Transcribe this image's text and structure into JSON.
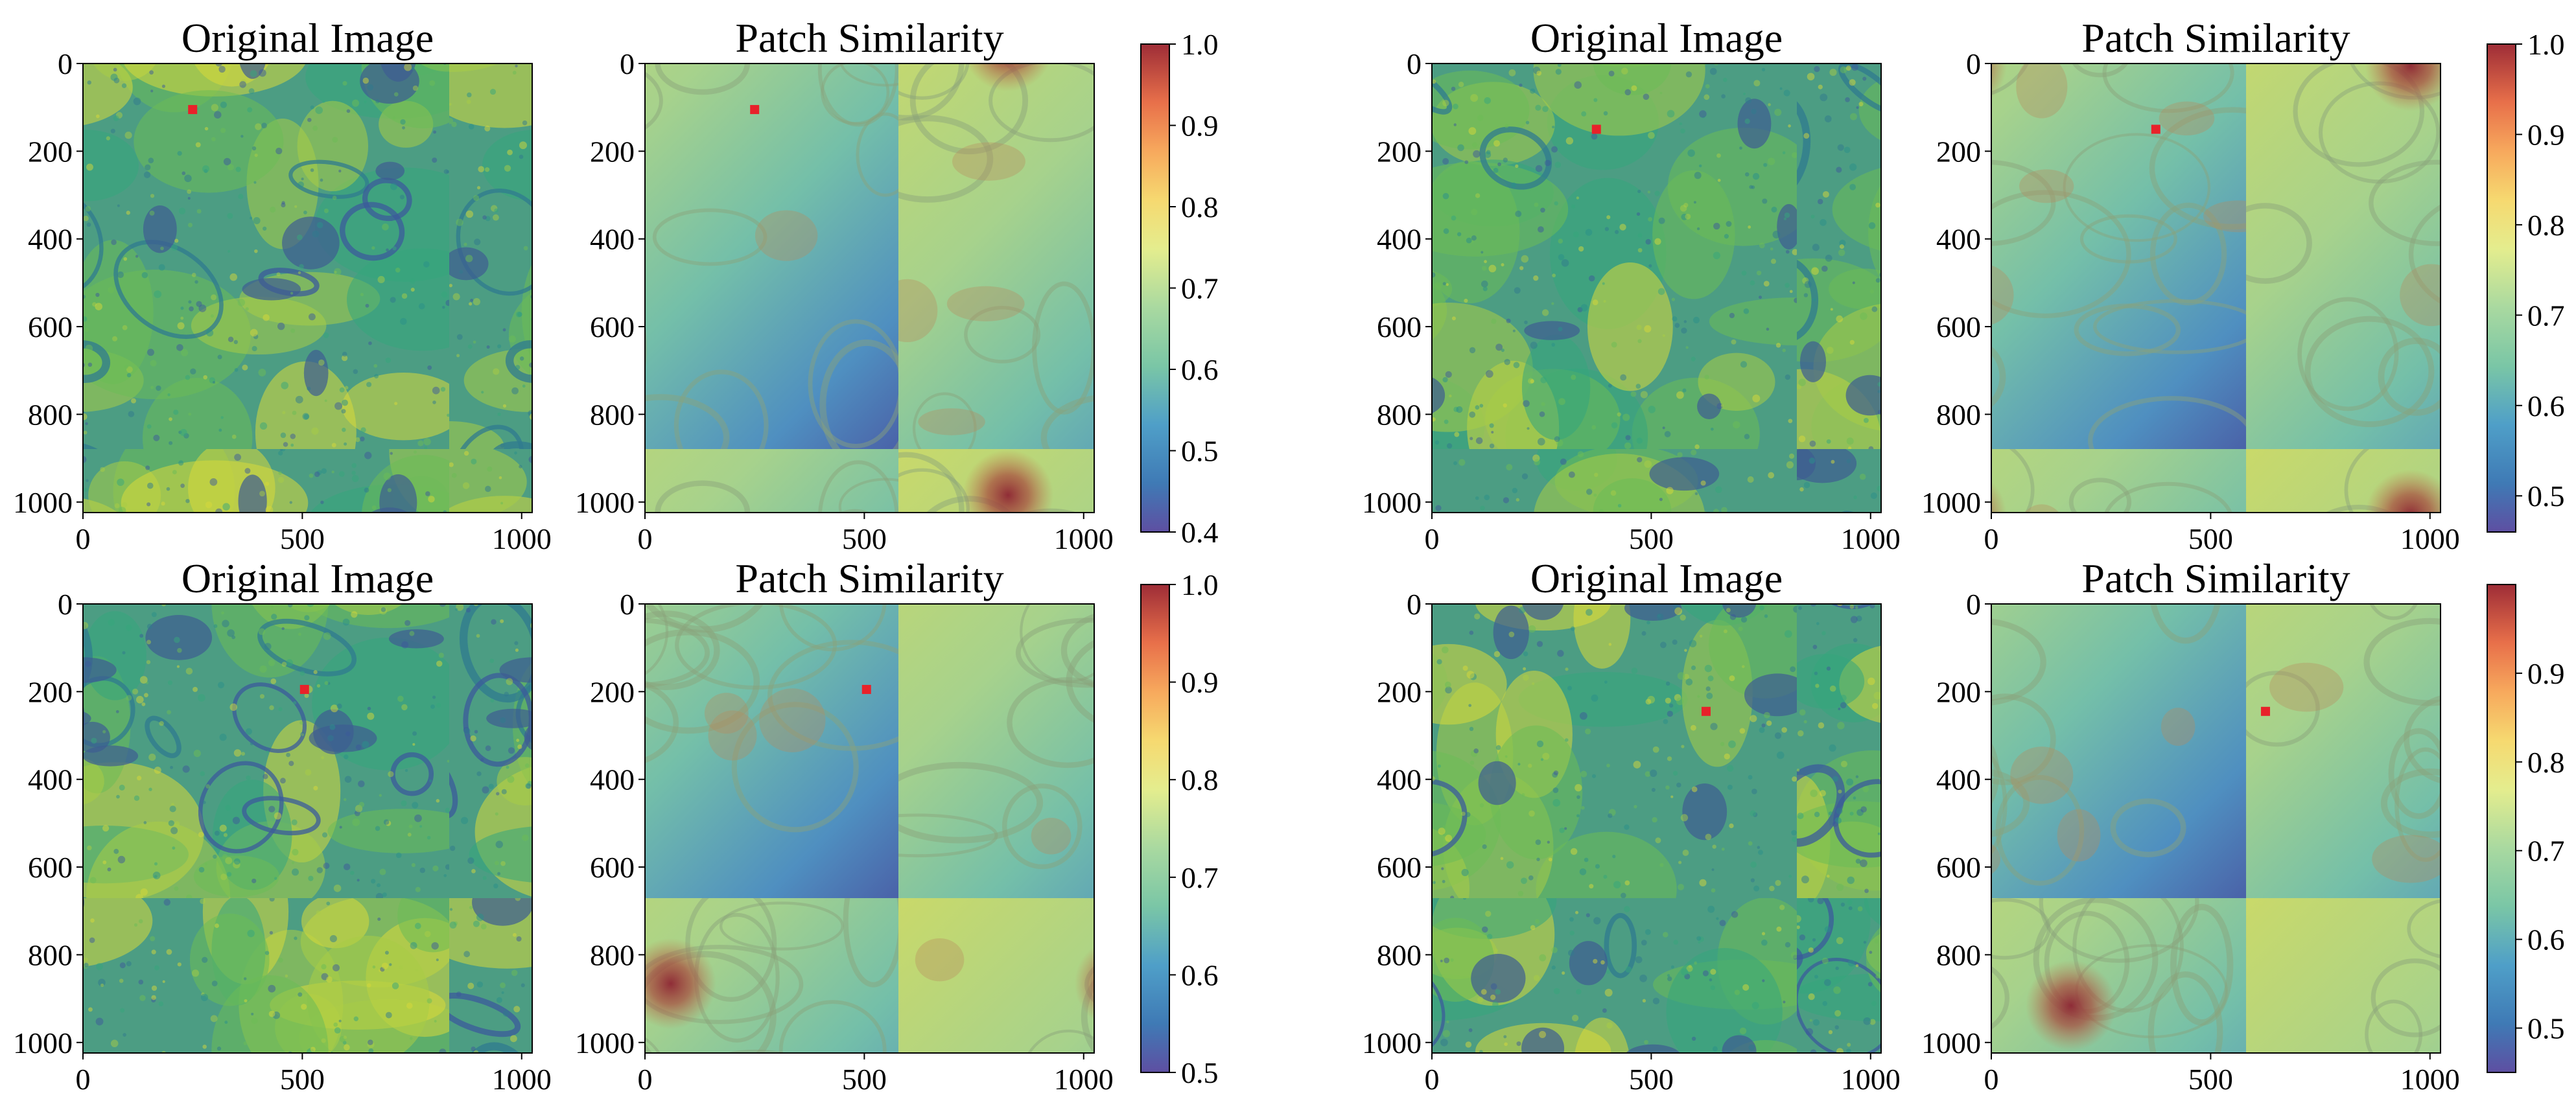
{
  "chart_data": [
    {
      "type": "heatmap",
      "variant": "original",
      "title": "Original Image",
      "xlim": [
        0,
        1024
      ],
      "ylim": [
        1024,
        0
      ],
      "x_ticks": [
        0,
        500,
        1000
      ],
      "y_ticks": [
        0,
        200,
        400,
        600,
        800,
        1000
      ],
      "query_point": {
        "x": 250,
        "y": 105
      },
      "marker_color": "#e8222a",
      "colormap": "viridis"
    },
    {
      "type": "heatmap",
      "variant": "similarity",
      "title": "Patch Similarity",
      "xlim": [
        0,
        1024
      ],
      "ylim": [
        1024,
        0
      ],
      "x_ticks": [
        0,
        500,
        1000
      ],
      "y_ticks": [
        0,
        200,
        400,
        600,
        800,
        1000
      ],
      "query_point": {
        "x": 250,
        "y": 105
      },
      "marker_color": "#e8222a",
      "colormap": "Spectral_r",
      "colorbar": {
        "min": 0.4,
        "max": 1.0,
        "ticks": [
          "0.4",
          "0.5",
          "0.6",
          "0.7",
          "0.8",
          "0.9",
          "1.0"
        ]
      }
    },
    {
      "type": "heatmap",
      "variant": "original",
      "title": "Original Image",
      "xlim": [
        0,
        1024
      ],
      "ylim": [
        1024,
        0
      ],
      "x_ticks": [
        0,
        500,
        1000
      ],
      "y_ticks": [
        0,
        200,
        400,
        600,
        800,
        1000
      ],
      "query_point": {
        "x": 375,
        "y": 150
      },
      "marker_color": "#e8222a",
      "colormap": "viridis"
    },
    {
      "type": "heatmap",
      "variant": "similarity",
      "title": "Patch Similarity",
      "xlim": [
        0,
        1024
      ],
      "ylim": [
        1024,
        0
      ],
      "x_ticks": [
        0,
        500,
        1000
      ],
      "y_ticks": [
        0,
        200,
        400,
        600,
        800,
        1000
      ],
      "query_point": {
        "x": 375,
        "y": 150
      },
      "marker_color": "#e8222a",
      "colormap": "Spectral_r",
      "colorbar": {
        "min": 0.46,
        "max": 1.0,
        "ticks": [
          "0.5",
          "0.6",
          "0.7",
          "0.8",
          "0.9",
          "1.0"
        ]
      }
    },
    {
      "type": "heatmap",
      "variant": "original",
      "title": "Original Image",
      "xlim": [
        0,
        1024
      ],
      "ylim": [
        1024,
        0
      ],
      "x_ticks": [
        0,
        500,
        1000
      ],
      "y_ticks": [
        0,
        200,
        400,
        600,
        800,
        1000
      ],
      "query_point": {
        "x": 505,
        "y": 195
      },
      "marker_color": "#e8222a",
      "colormap": "viridis"
    },
    {
      "type": "heatmap",
      "variant": "similarity",
      "title": "Patch Similarity",
      "xlim": [
        0,
        1024
      ],
      "ylim": [
        1024,
        0
      ],
      "x_ticks": [
        0,
        500,
        1000
      ],
      "y_ticks": [
        0,
        200,
        400,
        600,
        800,
        1000
      ],
      "query_point": {
        "x": 505,
        "y": 195
      },
      "marker_color": "#e8222a",
      "colormap": "Spectral_r",
      "colorbar": {
        "min": 0.5,
        "max": 1.0,
        "ticks": [
          "0.5",
          "0.6",
          "0.7",
          "0.8",
          "0.9",
          "1.0"
        ]
      }
    },
    {
      "type": "heatmap",
      "variant": "original",
      "title": "Original Image",
      "xlim": [
        0,
        1024
      ],
      "ylim": [
        1024,
        0
      ],
      "x_ticks": [
        0,
        500,
        1000
      ],
      "y_ticks": [
        0,
        200,
        400,
        600,
        800,
        1000
      ],
      "query_point": {
        "x": 625,
        "y": 245
      },
      "marker_color": "#e8222a",
      "colormap": "viridis"
    },
    {
      "type": "heatmap",
      "variant": "similarity",
      "title": "Patch Similarity",
      "xlim": [
        0,
        1024
      ],
      "ylim": [
        1024,
        0
      ],
      "x_ticks": [
        0,
        500,
        1000
      ],
      "y_ticks": [
        0,
        200,
        400,
        600,
        800,
        1000
      ],
      "query_point": {
        "x": 625,
        "y": 245
      },
      "marker_color": "#e8222a",
      "colormap": "Spectral_r",
      "colorbar": {
        "min": 0.45,
        "max": 1.0,
        "ticks": [
          "0.5",
          "0.6",
          "0.7",
          "0.8",
          "0.9"
        ]
      }
    }
  ]
}
